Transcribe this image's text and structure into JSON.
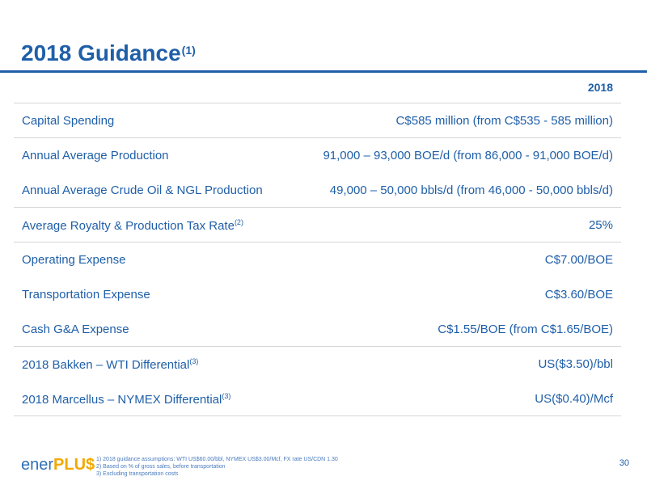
{
  "title": {
    "text": "2018 Guidance",
    "sup": "(1)"
  },
  "table": {
    "header": "2018",
    "rows": [
      {
        "label": "Capital Spending",
        "label_sup": "",
        "value": "C$585 million (from C$535 - 585 million)"
      },
      {
        "label": "Annual Average Production",
        "label_sup": "",
        "value": "91,000 – 93,000 BOE/d (from 86,000 - 91,000 BOE/d)"
      },
      {
        "label": "Annual Average Crude Oil & NGL Production",
        "label_sup": "",
        "value": "49,000 – 50,000 bbls/d (from 46,000 - 50,000 bbls/d)"
      },
      {
        "label": "Average Royalty & Production Tax Rate",
        "label_sup": "(2)",
        "value": "25%"
      },
      {
        "label": "Operating Expense",
        "label_sup": "",
        "value": "C$7.00/BOE"
      },
      {
        "label": "Transportation Expense",
        "label_sup": "",
        "value": "C$3.60/BOE"
      },
      {
        "label": "Cash G&A Expense",
        "label_sup": "",
        "value": "C$1.55/BOE (from C$1.65/BOE)"
      },
      {
        "label": "2018 Bakken – WTI Differential",
        "label_sup": "(3)",
        "value": "US($3.50)/bbl"
      },
      {
        "label": "2018 Marcellus – NYMEX Differential",
        "label_sup": "(3)",
        "value": "US($0.40)/Mcf"
      }
    ]
  },
  "footer": {
    "logo_main": "ener",
    "logo_accent": "PLU$",
    "footnotes": [
      "1)  2018 guidance assumptions: WTI US$60.00/bbl, NYMEX US$3.00/Mcf, FX rate US/CDN 1.30",
      "2)  Based on % of gross sales, before transportation",
      "3)  Excluding transportation costs"
    ],
    "page_number": "30"
  },
  "colors": {
    "brand_blue": "#1f5fa8",
    "logo_blue": "#2f6fb5",
    "logo_gold": "#f2a900",
    "rule_gray": "#d6d6d6"
  }
}
